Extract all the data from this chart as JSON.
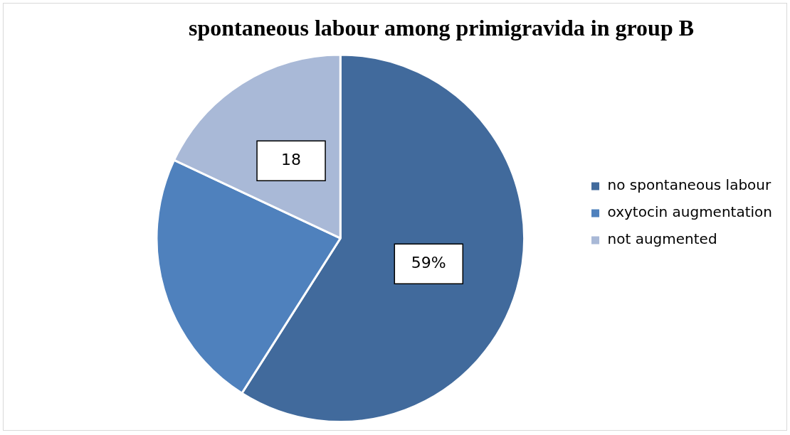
{
  "chart_data": {
    "type": "pie",
    "title": "spontaneous labour among primigravida in group B",
    "categories": [
      "no spontaneous labour",
      "oxytocin augmentation",
      "not augmented"
    ],
    "values": [
      59,
      23,
      18
    ],
    "colors": [
      "#416a9c",
      "#4f81bd",
      "#a9b9d7"
    ],
    "value_labels": [
      "59%",
      null,
      "18"
    ],
    "legend": "right"
  }
}
